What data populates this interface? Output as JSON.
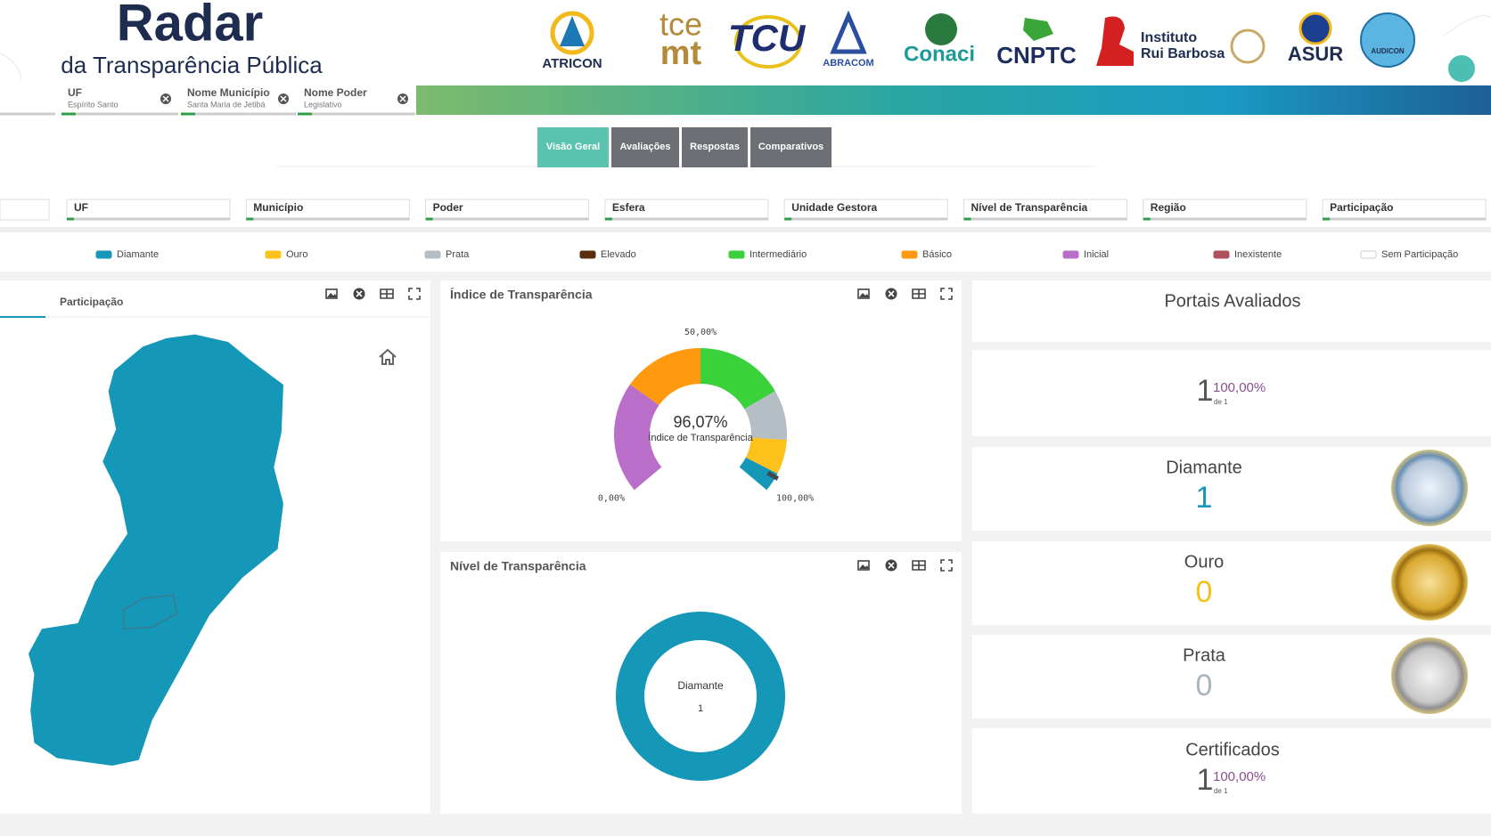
{
  "header": {
    "title": "Radar",
    "subtitle": "da Transparência Pública",
    "logos": [
      "ATRICON",
      "tce",
      "mt",
      "TCU",
      "ABRACOM",
      "Conaci",
      "CNPTC",
      "Instituto",
      "Rui Barbosa",
      "ASUR",
      "AUDICON"
    ]
  },
  "active_filters": [
    {
      "label": "UF",
      "value": "Espírito Santo"
    },
    {
      "label": "Nome Município",
      "value": "Santa Maria de Jetibá"
    },
    {
      "label": "Nome Poder",
      "value": "Legislativo"
    }
  ],
  "tabs": {
    "items": [
      "Visão Geral",
      "Avaliações",
      "Respostas",
      "Comparativos"
    ],
    "active": 0
  },
  "filters": [
    "UF",
    "Município",
    "Poder",
    "Esfera",
    "Unidade Gestora",
    "Nível de Transparência",
    "Região",
    "Participação"
  ],
  "legend": [
    {
      "name": "Diamante",
      "color": "#1597b8"
    },
    {
      "name": "Ouro",
      "color": "#fcc11a"
    },
    {
      "name": "Prata",
      "color": "#b5bec5"
    },
    {
      "name": "Elevado",
      "color": "#5a2e0e"
    },
    {
      "name": "Intermediário",
      "color": "#3ad13a"
    },
    {
      "name": "Básico",
      "color": "#ff9a0e"
    },
    {
      "name": "Inicial",
      "color": "#b96fc9"
    },
    {
      "name": "Inexistente",
      "color": "#b0505c"
    },
    {
      "name": "Sem Participação",
      "color": "#ffffff"
    }
  ],
  "map_panel": {
    "tab": "Participação",
    "color": "#1597b8"
  },
  "chart_data": [
    {
      "type": "gauge",
      "title": "Índice de Transparência",
      "value": 96.07,
      "value_label": "96,07%",
      "label": "Índice de Transparência",
      "ylim": [
        0,
        100
      ],
      "yticks": [
        {
          "value": 0,
          "label": "0,00%"
        },
        {
          "value": 50,
          "label": "50,00%"
        },
        {
          "value": 100,
          "label": "100,00%"
        }
      ],
      "bands": [
        {
          "from": 0,
          "to": 29,
          "color": "#b96fc9"
        },
        {
          "from": 29,
          "to": 50,
          "color": "#ff9a0e"
        },
        {
          "from": 50,
          "to": 73,
          "color": "#3ad13a"
        },
        {
          "from": 73,
          "to": 86,
          "color": "#b5bec5"
        },
        {
          "from": 86,
          "to": 95,
          "color": "#fcc11a"
        },
        {
          "from": 95,
          "to": 100,
          "color": "#1597b8"
        }
      ]
    },
    {
      "type": "pie",
      "title": "Nível de Transparência",
      "categories": [
        "Diamante"
      ],
      "values": [
        1
      ],
      "colors": [
        "#1597b8"
      ]
    }
  ],
  "cards": {
    "portais": {
      "title": "Portais Avaliados",
      "count": 1,
      "percent": "100,00%",
      "of": "de 1"
    },
    "levels": [
      {
        "name": "Diamante",
        "count": 1,
        "color": "#1597b8"
      },
      {
        "name": "Ouro",
        "count": 0,
        "color": "#f5c118"
      },
      {
        "name": "Prata",
        "count": 0,
        "color": "#a9b4bb"
      }
    ],
    "certificados": {
      "title": "Certificados",
      "count": 1,
      "percent": "100,00%",
      "of": "de 1"
    }
  }
}
